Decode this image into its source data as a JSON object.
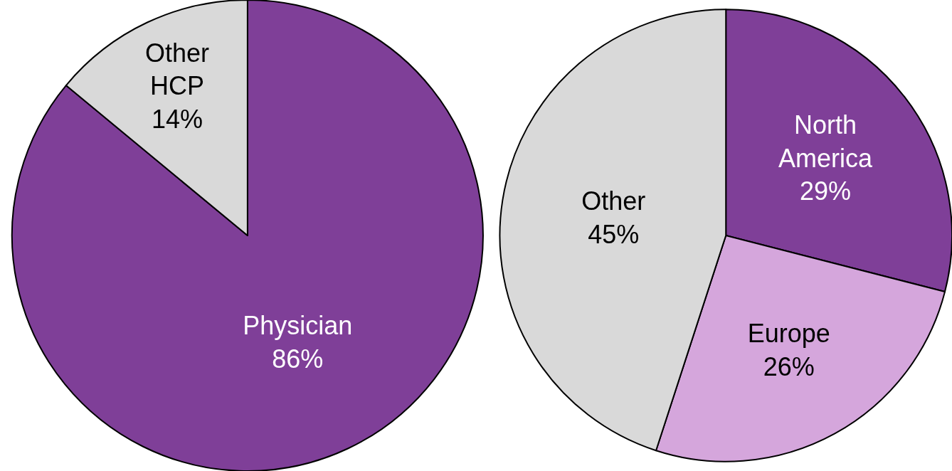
{
  "chart_data": [
    {
      "type": "pie",
      "categories": [
        "Physician",
        "Other HCP"
      ],
      "values": [
        86,
        14
      ],
      "value_labels": [
        "86%",
        "14%"
      ],
      "colors": [
        "#7f3f98",
        "#d9d9d9"
      ]
    },
    {
      "type": "pie",
      "categories": [
        "North America",
        "Europe",
        "Other"
      ],
      "values": [
        29,
        26,
        45
      ],
      "value_labels": [
        "29%",
        "26%",
        "45%"
      ],
      "colors": [
        "#7f3f98",
        "#d5a6dc",
        "#d9d9d9"
      ]
    }
  ]
}
